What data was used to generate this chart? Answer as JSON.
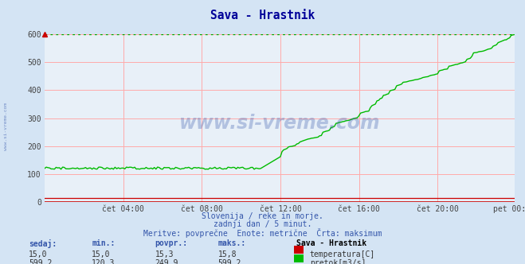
{
  "title": "Sava - Hrastnik",
  "bg_color": "#d4e4f4",
  "plot_bg_color": "#e8f0f8",
  "grid_color": "#ffaaaa",
  "max_line_color": "#00aa00",
  "max_line_value": 599.2,
  "temp_line_color": "#cc0000",
  "flow_line_color": "#00bb00",
  "y_min": 0,
  "y_max": 600,
  "yticks": [
    0,
    100,
    200,
    300,
    400,
    500,
    600
  ],
  "xtick_labels": [
    "čet 04:00",
    "čet 08:00",
    "čet 12:00",
    "čet 16:00",
    "čet 20:00",
    "pet 00:00"
  ],
  "xtick_positions": [
    48,
    96,
    144,
    192,
    240,
    287
  ],
  "subtitle1": "Slovenija / reke in morje.",
  "subtitle2": "zadnji dan / 5 minut.",
  "subtitle3": "Meritve: povprečne  Enote: metrične  Črta: maksimum",
  "label_color": "#3355aa",
  "watermark": "www.si-vreme.com",
  "legend_title": "Sava - Hrastnik",
  "headers": [
    "sedaj:",
    "min.:",
    "povpr.:",
    "maks.:"
  ],
  "row1_vals": [
    "15,0",
    "15,0",
    "15,3",
    "15,8"
  ],
  "row2_vals": [
    "599,2",
    "120,3",
    "249,9",
    "599,2"
  ],
  "temp_color": "#cc0000",
  "flow_color": "#00bb00",
  "temp_label": "temperatura[C]",
  "flow_label": "pretok[m3/s]",
  "title_color": "#000099",
  "arrow_color": "#cc0000"
}
